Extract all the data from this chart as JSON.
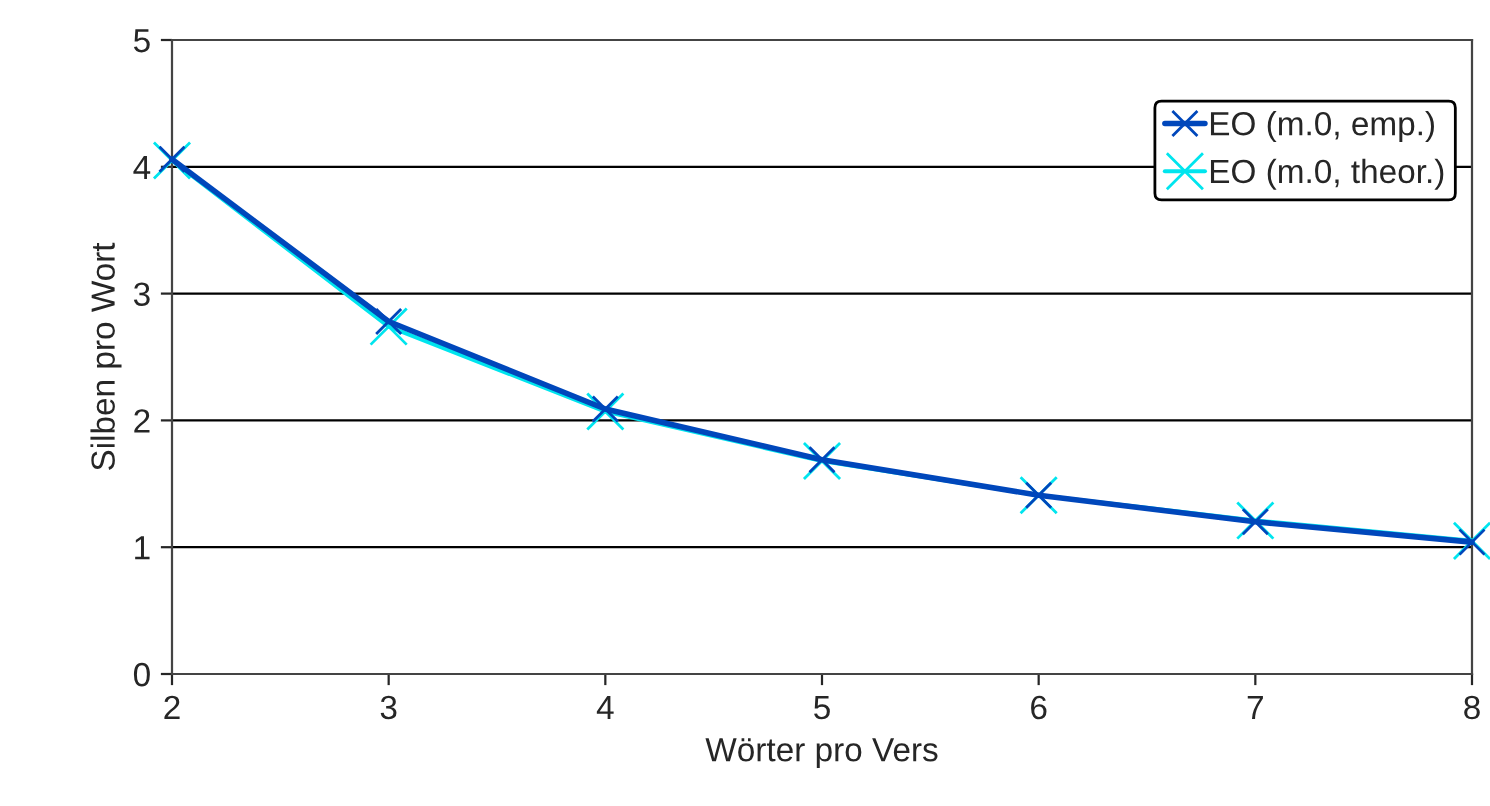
{
  "chart_data": {
    "type": "line",
    "xlabel": "Wörter pro Vers",
    "ylabel": "Silben pro Wort",
    "x": [
      2,
      3,
      4,
      5,
      6,
      7,
      8
    ],
    "series": [
      {
        "name": "EO (m.0, emp.)",
        "color": "#0047bb",
        "values": [
          4.06,
          2.78,
          2.09,
          1.69,
          1.41,
          1.2,
          1.04
        ]
      },
      {
        "name": "EO (m.0, theor.)",
        "color": "#00e5ee",
        "values": [
          4.05,
          2.74,
          2.07,
          1.68,
          1.41,
          1.21,
          1.05
        ]
      }
    ],
    "xlim": [
      2,
      8
    ],
    "xticks": [
      2,
      3,
      4,
      5,
      6,
      7,
      8
    ],
    "ylim": [
      0,
      5
    ],
    "yticks": [
      0,
      1,
      2,
      3,
      4,
      5
    ],
    "grid": "y",
    "legend": "top right",
    "marker": "cross",
    "line_style": "solid"
  }
}
